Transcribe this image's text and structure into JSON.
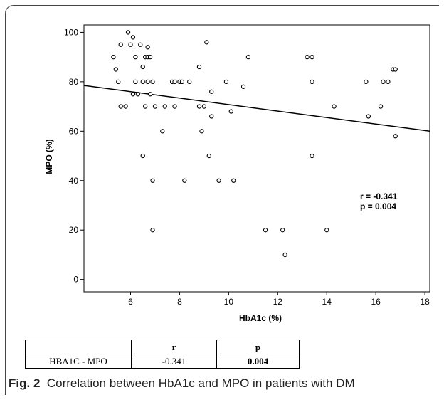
{
  "chart_data": {
    "type": "scatter",
    "xlabel": "HbA1c (%)",
    "ylabel": "MPO (%)",
    "xlim": [
      4.1,
      18.2
    ],
    "ylim": [
      -5,
      103
    ],
    "xticks": [
      6,
      8,
      10,
      12,
      14,
      16,
      18
    ],
    "yticks": [
      0,
      20,
      40,
      60,
      80,
      100
    ],
    "grid": false,
    "annotation": [
      "r = -0.341",
      "p = 0.004"
    ],
    "fit_line": {
      "x": [
        4.1,
        18.2
      ],
      "y": [
        78.5,
        60
      ]
    },
    "points": [
      {
        "x": 5.3,
        "y": 90
      },
      {
        "x": 5.4,
        "y": 85
      },
      {
        "x": 5.5,
        "y": 80
      },
      {
        "x": 5.6,
        "y": 95
      },
      {
        "x": 5.6,
        "y": 70
      },
      {
        "x": 5.8,
        "y": 70
      },
      {
        "x": 5.9,
        "y": 100
      },
      {
        "x": 6.0,
        "y": 95
      },
      {
        "x": 6.1,
        "y": 98
      },
      {
        "x": 6.1,
        "y": 75
      },
      {
        "x": 6.2,
        "y": 90
      },
      {
        "x": 6.2,
        "y": 80
      },
      {
        "x": 6.3,
        "y": 75
      },
      {
        "x": 6.4,
        "y": 95
      },
      {
        "x": 6.5,
        "y": 86
      },
      {
        "x": 6.5,
        "y": 80
      },
      {
        "x": 6.5,
        "y": 50
      },
      {
        "x": 6.6,
        "y": 90
      },
      {
        "x": 6.6,
        "y": 70
      },
      {
        "x": 6.7,
        "y": 94
      },
      {
        "x": 6.7,
        "y": 90
      },
      {
        "x": 6.7,
        "y": 80
      },
      {
        "x": 6.8,
        "y": 90
      },
      {
        "x": 6.8,
        "y": 75
      },
      {
        "x": 6.9,
        "y": 80
      },
      {
        "x": 6.9,
        "y": 40
      },
      {
        "x": 6.9,
        "y": 20
      },
      {
        "x": 7.0,
        "y": 70
      },
      {
        "x": 7.3,
        "y": 60
      },
      {
        "x": 7.4,
        "y": 70
      },
      {
        "x": 7.7,
        "y": 80
      },
      {
        "x": 7.8,
        "y": 80
      },
      {
        "x": 7.8,
        "y": 70
      },
      {
        "x": 8.0,
        "y": 80
      },
      {
        "x": 8.1,
        "y": 80
      },
      {
        "x": 8.2,
        "y": 40
      },
      {
        "x": 8.4,
        "y": 80
      },
      {
        "x": 8.8,
        "y": 86
      },
      {
        "x": 8.8,
        "y": 70
      },
      {
        "x": 8.9,
        "y": 60
      },
      {
        "x": 9.0,
        "y": 70
      },
      {
        "x": 9.1,
        "y": 96
      },
      {
        "x": 9.2,
        "y": 50
      },
      {
        "x": 9.3,
        "y": 76
      },
      {
        "x": 9.3,
        "y": 66
      },
      {
        "x": 9.6,
        "y": 40
      },
      {
        "x": 9.9,
        "y": 80
      },
      {
        "x": 10.1,
        "y": 68
      },
      {
        "x": 10.2,
        "y": 40
      },
      {
        "x": 10.6,
        "y": 78
      },
      {
        "x": 10.8,
        "y": 90
      },
      {
        "x": 11.5,
        "y": 20
      },
      {
        "x": 12.2,
        "y": 20
      },
      {
        "x": 12.3,
        "y": 10
      },
      {
        "x": 13.2,
        "y": 90
      },
      {
        "x": 13.4,
        "y": 90
      },
      {
        "x": 13.4,
        "y": 80
      },
      {
        "x": 13.4,
        "y": 50
      },
      {
        "x": 14.0,
        "y": 20
      },
      {
        "x": 14.3,
        "y": 70
      },
      {
        "x": 15.6,
        "y": 80
      },
      {
        "x": 15.7,
        "y": 66
      },
      {
        "x": 16.2,
        "y": 70
      },
      {
        "x": 16.3,
        "y": 80
      },
      {
        "x": 16.5,
        "y": 80
      },
      {
        "x": 16.7,
        "y": 85
      },
      {
        "x": 16.8,
        "y": 85
      },
      {
        "x": 16.8,
        "y": 58
      }
    ]
  },
  "table": {
    "headers": [
      "",
      "r",
      "p"
    ],
    "row": {
      "label": "HBA1C - MPO",
      "r": "-0.341",
      "p": "0.004"
    }
  },
  "caption": {
    "label": "Fig. 2",
    "text": "Correlation between HbA1c and MPO in patients with DM"
  }
}
